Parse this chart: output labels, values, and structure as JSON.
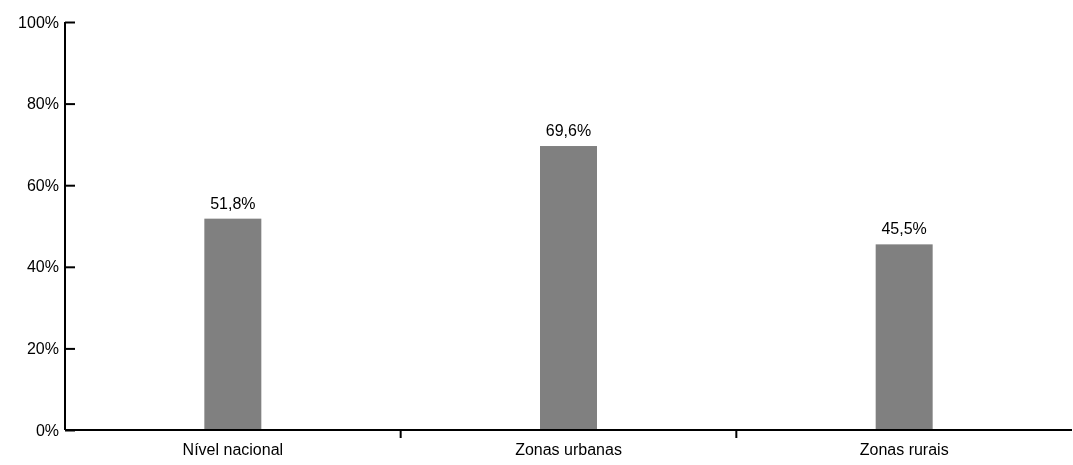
{
  "chart_data": {
    "type": "bar",
    "categories": [
      "Nível nacional",
      "Zonas urbanas",
      "Zonas rurais"
    ],
    "values": [
      51.8,
      69.6,
      45.5
    ],
    "color": "#808080",
    "value_labels": [
      "51,8%",
      "69,6%",
      "45,5%"
    ],
    "ylim": [
      0,
      100
    ],
    "yticks": [
      {
        "value": 0,
        "label": "0%"
      },
      {
        "value": 20,
        "label": "20%"
      },
      {
        "value": 40,
        "label": "40%"
      },
      {
        "value": 60,
        "label": "60%"
      },
      {
        "value": 80,
        "label": "80%"
      },
      {
        "value": 100,
        "label": "100%"
      }
    ],
    "grid": false
  }
}
